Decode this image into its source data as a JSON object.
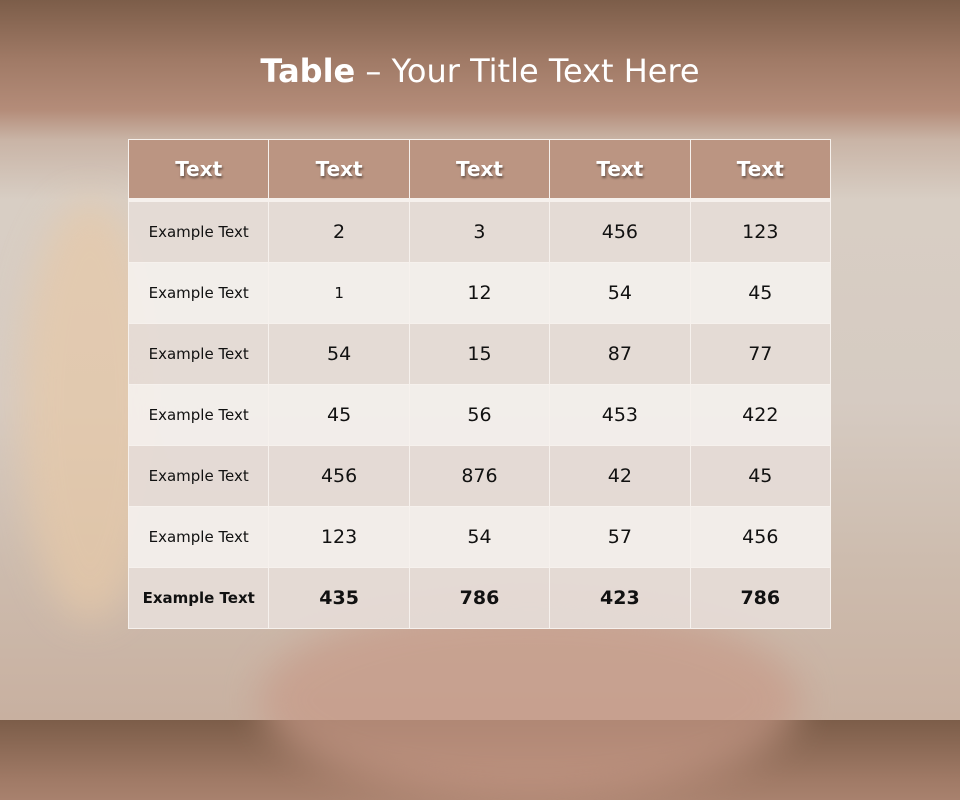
{
  "slide": {
    "title_bold": "Table",
    "title_rest": " – Your Title Text Here"
  },
  "table": {
    "headers": [
      "Text",
      "Text",
      "Text",
      "Text",
      "Text"
    ],
    "rows": [
      [
        "Example Text",
        "2",
        "3",
        "456",
        "123"
      ],
      [
        "Example Text",
        "1",
        "12",
        "54",
        "45"
      ],
      [
        "Example Text",
        "54",
        "15",
        "87",
        "77"
      ],
      [
        "Example Text",
        "45",
        "56",
        "453",
        "422"
      ],
      [
        "Example Text",
        "456",
        "876",
        "42",
        "45"
      ],
      [
        "Example Text",
        "123",
        "54",
        "57",
        "456"
      ],
      [
        "Example Text",
        "435",
        "786",
        "423",
        "786"
      ]
    ]
  },
  "colors": {
    "header_bg": "#bb9582",
    "row_odd": "#e5dbd6",
    "row_even": "#f3efec",
    "title": "#ffffff"
  }
}
